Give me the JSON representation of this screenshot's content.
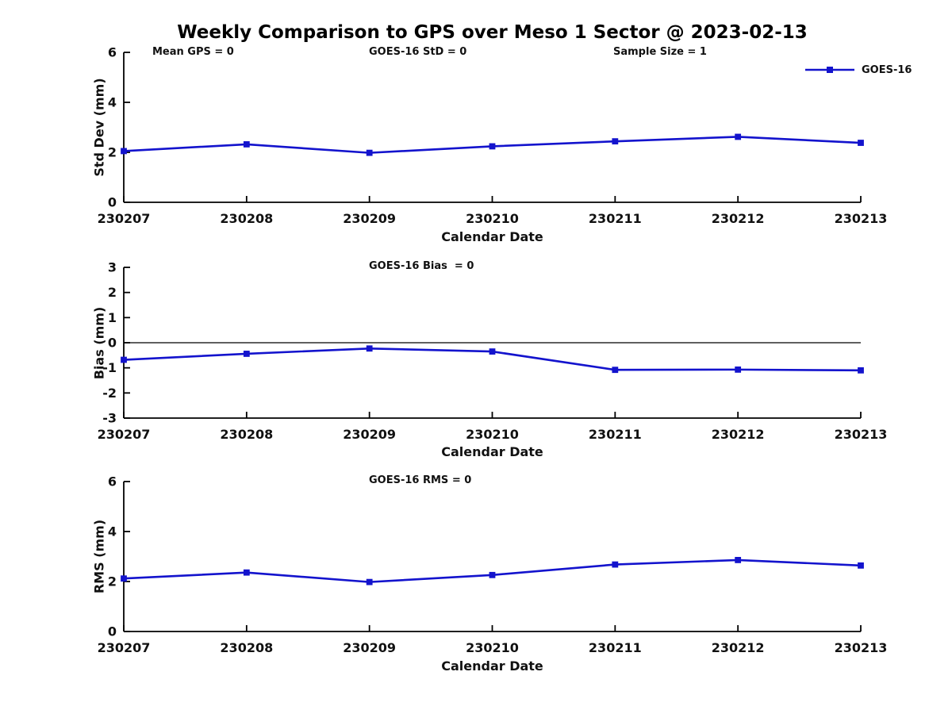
{
  "title": "Weekly Comparison to GPS over Meso 1 Sector @ 2023-02-13",
  "legend": {
    "label": "GOES-16",
    "position": "top-right",
    "color": "#1313CD"
  },
  "chart_data": [
    {
      "type": "line",
      "categories": [
        "230207",
        "230208",
        "230209",
        "230210",
        "230211",
        "230212",
        "230213"
      ],
      "series": [
        {
          "name": "GOES-16",
          "color": "#1313CD",
          "marker": "square",
          "values": [
            2.05,
            2.32,
            1.98,
            2.24,
            2.44,
            2.62,
            2.38
          ]
        }
      ],
      "xlabel": "Calendar Date",
      "ylabel": "Std Dev (mm)",
      "ylim": [
        0,
        6
      ],
      "yticks": [
        0,
        2,
        4,
        6
      ],
      "grid": false,
      "annotations": [
        "Mean GPS = 0",
        "GOES-16 StD = 0",
        "Sample Size = 1"
      ]
    },
    {
      "type": "line",
      "categories": [
        "230207",
        "230208",
        "230209",
        "230210",
        "230211",
        "230212",
        "230213"
      ],
      "series": [
        {
          "name": "GOES-16",
          "color": "#1313CD",
          "marker": "square",
          "values": [
            -0.68,
            -0.44,
            -0.23,
            -0.35,
            -1.08,
            -1.07,
            -1.1
          ]
        }
      ],
      "xlabel": "Calendar Date",
      "ylabel": "Bias (mm)",
      "ylim": [
        -3,
        3
      ],
      "yticks": [
        -3,
        -2,
        -1,
        0,
        1,
        2,
        3
      ],
      "hline": 0,
      "grid": false,
      "annotations": [
        "GOES-16 Bias  = 0"
      ]
    },
    {
      "type": "line",
      "categories": [
        "230207",
        "230208",
        "230209",
        "230210",
        "230211",
        "230212",
        "230213"
      ],
      "series": [
        {
          "name": "GOES-16",
          "color": "#1313CD",
          "marker": "square",
          "values": [
            2.12,
            2.36,
            1.98,
            2.26,
            2.68,
            2.86,
            2.64
          ]
        }
      ],
      "xlabel": "Calendar Date",
      "ylabel": "RMS (mm)",
      "ylim": [
        0,
        6
      ],
      "yticks": [
        0,
        2,
        4,
        6
      ],
      "grid": false,
      "annotations": [
        "GOES-16 RMS = 0"
      ]
    }
  ]
}
